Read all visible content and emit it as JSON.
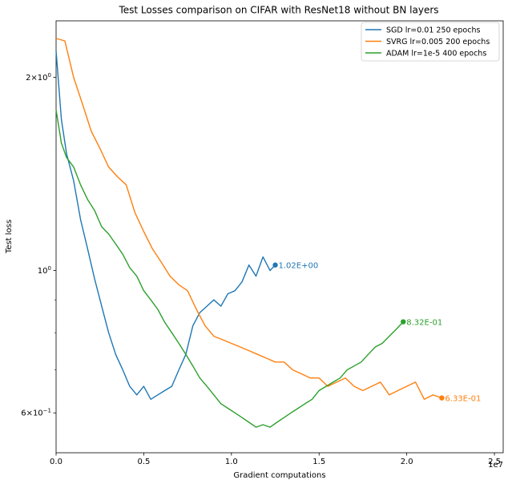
{
  "chart_data": {
    "type": "line",
    "title": "Test Losses comparison on CIFAR with ResNet18 without BN layers",
    "xlabel": "Gradient computations",
    "ylabel": "Test loss",
    "x_offset_label": "1e7",
    "x_scale": "linear",
    "y_scale": "log",
    "xlim": [
      0,
      25500000
    ],
    "ylim": [
      0.52,
      2.45
    ],
    "grid": false,
    "legend_position": "top-right",
    "x_ticks": [
      {
        "value": 0,
        "label": "0.0"
      },
      {
        "value": 5000000,
        "label": "0.5"
      },
      {
        "value": 10000000,
        "label": "1.0"
      },
      {
        "value": 15000000,
        "label": "1.5"
      },
      {
        "value": 20000000,
        "label": "2.0"
      },
      {
        "value": 25000000,
        "label": "2.5"
      }
    ],
    "y_ticks": [
      {
        "value": 2.0,
        "label_base": "2×10",
        "label_exp": "0"
      },
      {
        "value": 1.0,
        "label_base": "10",
        "label_exp": "0"
      },
      {
        "value": 0.6,
        "label_base": "6×10",
        "label_exp": "−1"
      }
    ],
    "series": [
      {
        "name": "SGD lr=0.01 250 epochs",
        "color": "#1f77b4",
        "x": [
          0,
          300000,
          600000,
          1000000,
          1400000,
          1800000,
          2200000,
          2600000,
          3000000,
          3400000,
          3800000,
          4200000,
          4600000,
          5000000,
          5400000,
          5800000,
          6200000,
          6600000,
          7000000,
          7400000,
          7800000,
          8200000,
          8600000,
          9000000,
          9400000,
          9800000,
          10200000,
          10600000,
          11000000,
          11400000,
          11800000,
          12200000,
          12500000
        ],
        "values": [
          2.2,
          1.72,
          1.52,
          1.38,
          1.2,
          1.08,
          0.97,
          0.88,
          0.8,
          0.74,
          0.7,
          0.66,
          0.64,
          0.66,
          0.63,
          0.64,
          0.65,
          0.66,
          0.7,
          0.74,
          0.82,
          0.86,
          0.88,
          0.9,
          0.88,
          0.92,
          0.93,
          0.96,
          1.02,
          0.98,
          1.05,
          1.0,
          1.02
        ],
        "end_label": "1.02E+00"
      },
      {
        "name": "SVRG lr=0.005 200 epochs",
        "color": "#ff7f0e",
        "x": [
          0,
          500000,
          1000000,
          1500000,
          2000000,
          2500000,
          3000000,
          3500000,
          4000000,
          4500000,
          5000000,
          5500000,
          6000000,
          6500000,
          7000000,
          7500000,
          8000000,
          8500000,
          9000000,
          9500000,
          10000000,
          10500000,
          11000000,
          11500000,
          12000000,
          12500000,
          13000000,
          13500000,
          14000000,
          14500000,
          15000000,
          15500000,
          16000000,
          16500000,
          17000000,
          17500000,
          18000000,
          18500000,
          19000000,
          19500000,
          20000000,
          20500000,
          21000000,
          21500000,
          22000000
        ],
        "values": [
          2.3,
          2.28,
          2.0,
          1.82,
          1.65,
          1.55,
          1.45,
          1.4,
          1.36,
          1.23,
          1.15,
          1.08,
          1.03,
          0.98,
          0.95,
          0.93,
          0.87,
          0.82,
          0.79,
          0.78,
          0.77,
          0.76,
          0.75,
          0.74,
          0.73,
          0.72,
          0.72,
          0.7,
          0.69,
          0.68,
          0.68,
          0.66,
          0.67,
          0.68,
          0.66,
          0.65,
          0.66,
          0.67,
          0.64,
          0.65,
          0.66,
          0.67,
          0.63,
          0.64,
          0.633
        ],
        "end_label": "6.33E-01"
      },
      {
        "name": "ADAM lr=1e-5 400 epochs",
        "color": "#2ca02c",
        "x": [
          0,
          300000,
          600000,
          1000000,
          1400000,
          1800000,
          2200000,
          2600000,
          3000000,
          3400000,
          3800000,
          4200000,
          4600000,
          5000000,
          5400000,
          5800000,
          6200000,
          6600000,
          7000000,
          7400000,
          7800000,
          8200000,
          8600000,
          9000000,
          9400000,
          9800000,
          10200000,
          10600000,
          11000000,
          11400000,
          11800000,
          12200000,
          12600000,
          13000000,
          13400000,
          13800000,
          14200000,
          14600000,
          15000000,
          15400000,
          15800000,
          16200000,
          16600000,
          17000000,
          17400000,
          17800000,
          18200000,
          18600000,
          19000000,
          19400000,
          19800000
        ],
        "values": [
          1.78,
          1.58,
          1.5,
          1.45,
          1.36,
          1.29,
          1.24,
          1.17,
          1.14,
          1.1,
          1.06,
          1.01,
          0.98,
          0.93,
          0.9,
          0.87,
          0.83,
          0.8,
          0.77,
          0.74,
          0.71,
          0.68,
          0.66,
          0.64,
          0.62,
          0.61,
          0.6,
          0.59,
          0.58,
          0.57,
          0.575,
          0.57,
          0.58,
          0.59,
          0.6,
          0.61,
          0.62,
          0.63,
          0.65,
          0.66,
          0.67,
          0.68,
          0.7,
          0.71,
          0.72,
          0.74,
          0.76,
          0.77,
          0.79,
          0.81,
          0.832
        ],
        "end_label": "8.32E-01"
      }
    ]
  }
}
